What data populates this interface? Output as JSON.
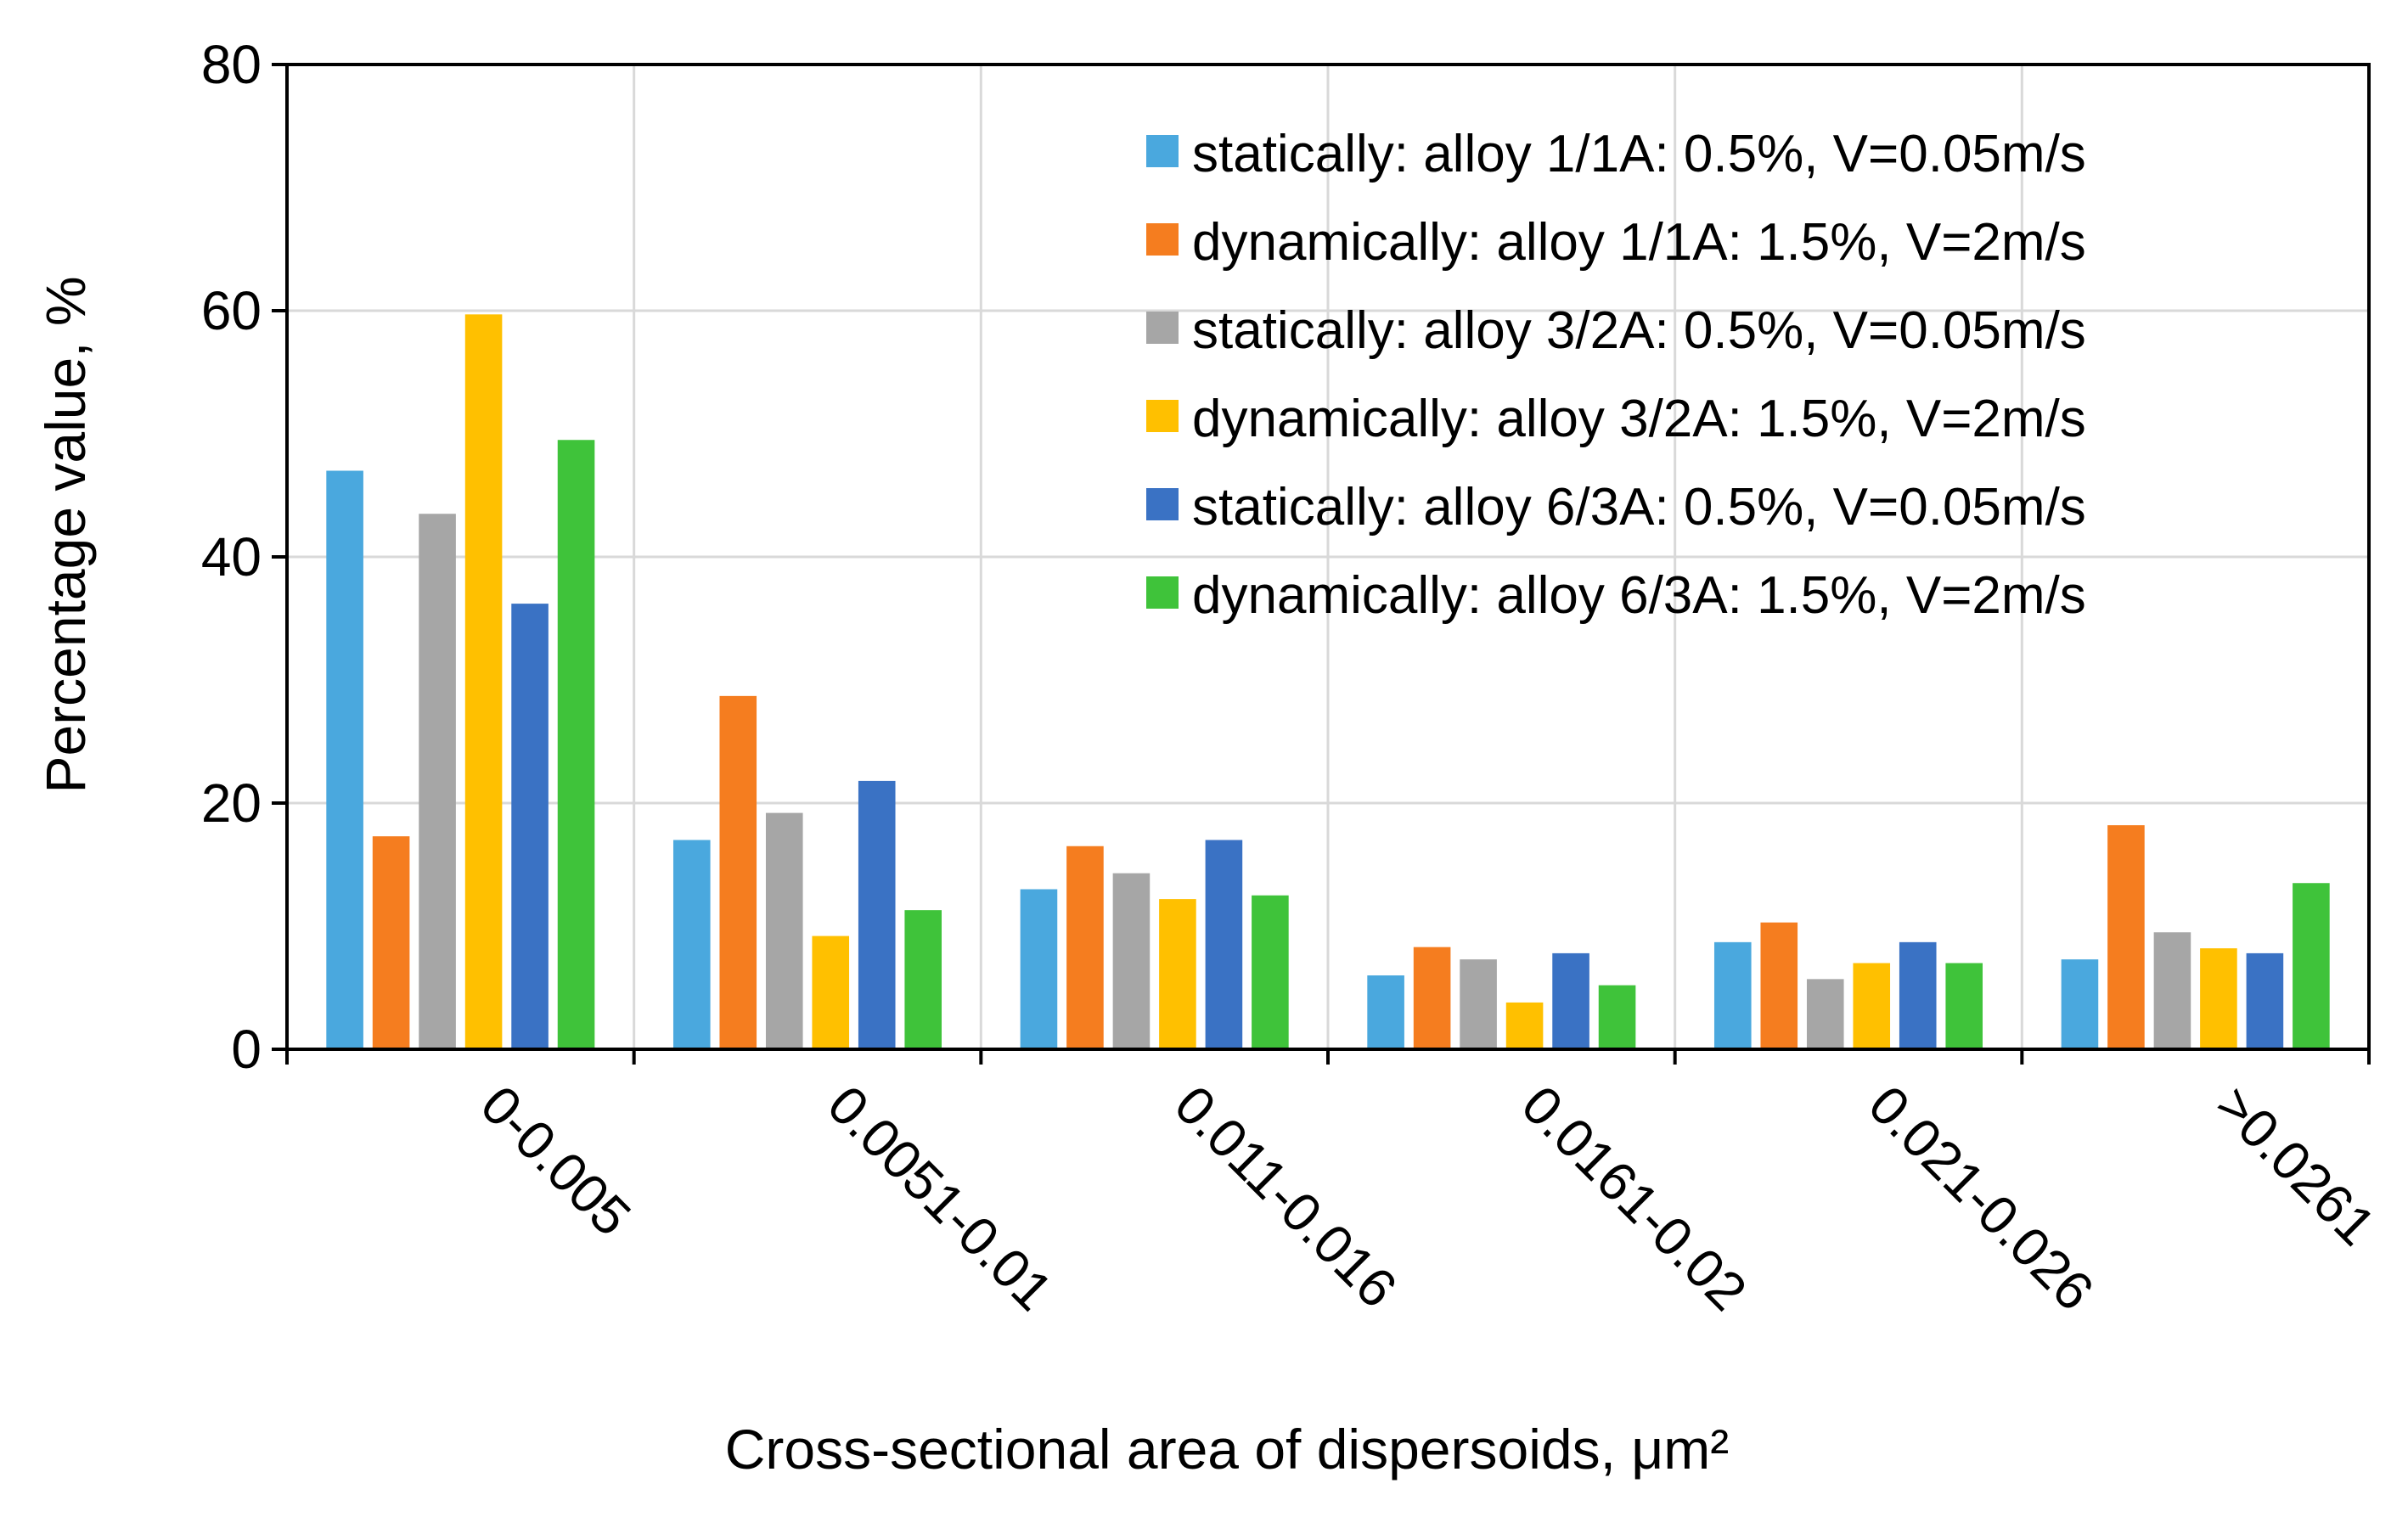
{
  "chart_data": {
    "type": "bar",
    "title": "",
    "xlabel": "Cross-sectional area of dispersoids, μm²",
    "ylabel": "Percentage value, %",
    "ylim": [
      0,
      80
    ],
    "yticks": [
      0,
      20,
      40,
      60,
      80
    ],
    "grid": true,
    "legend_position": "top-right",
    "categories": [
      "0-0.005",
      "0.0051-0.01",
      "0.011-0.016",
      "0.0161-0.02",
      "0.021-0.026",
      ">0.0261"
    ],
    "series": [
      {
        "name": "statically: alloy 1/1A: 0.5%, V=0.05m/s",
        "color": "#4aa8de",
        "values": [
          47,
          17,
          13,
          6,
          8.7,
          7.3
        ]
      },
      {
        "name": "dynamically: alloy 1/1A: 1.5%, V=2m/s",
        "color": "#f57d1f",
        "values": [
          17.3,
          28.7,
          16.5,
          8.3,
          10.3,
          18.2
        ]
      },
      {
        "name": "statically: alloy 3/2A: 0.5%, V=0.05m/s",
        "color": "#a6a6a6",
        "values": [
          43.5,
          19.2,
          14.3,
          7.3,
          5.7,
          9.5
        ]
      },
      {
        "name": "dynamically: alloy 3/2A: 1.5%, V=2m/s",
        "color": "#ffc000",
        "values": [
          59.7,
          9.2,
          12.2,
          3.8,
          7,
          8.2
        ]
      },
      {
        "name": "statically: alloy 6/3A: 0.5%, V=0.05m/s",
        "color": "#3a72c4",
        "values": [
          36.2,
          21.8,
          17,
          7.8,
          8.7,
          7.8
        ]
      },
      {
        "name": "dynamically: alloy 6/3A: 1.5%, V=2m/s",
        "color": "#3fc33a",
        "values": [
          49.5,
          11.3,
          12.5,
          5.2,
          7,
          13.5
        ]
      }
    ]
  }
}
